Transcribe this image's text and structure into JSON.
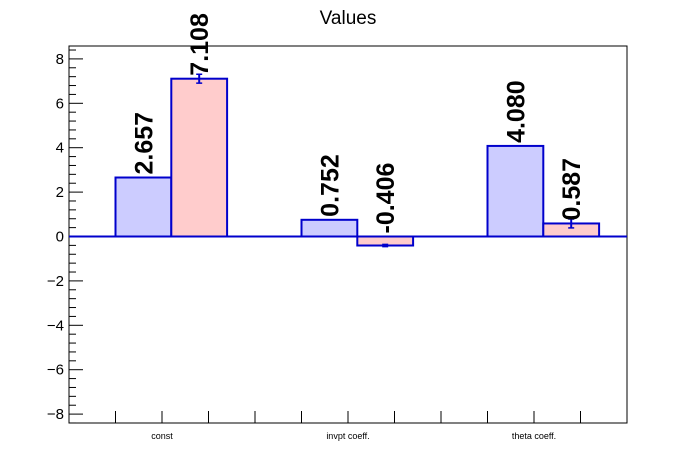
{
  "chart_data": {
    "type": "bar",
    "title": "Values",
    "categories": [
      "const",
      "invpt coeff.",
      "theta coeff."
    ],
    "series": [
      {
        "values": [
          2.657,
          0.752,
          4.08
        ],
        "labels": [
          "2.657",
          "0.752",
          "4.080"
        ],
        "errors": [
          0,
          0,
          0
        ],
        "color": "#ccccff"
      },
      {
        "values": [
          7.108,
          -0.406,
          0.587
        ],
        "labels": [
          "7.108",
          "-0.406",
          "0.587"
        ],
        "errors": [
          0.2,
          0.05,
          0.2
        ],
        "color": "#ffcccc"
      }
    ],
    "ylim": [
      -8.5,
      8.5
    ],
    "yticks": [
      -8,
      -6,
      -4,
      -2,
      0,
      2,
      4,
      6,
      8
    ],
    "ytick_labels": [
      "−8",
      "−6",
      "−4",
      "−2",
      "0",
      "2",
      "4",
      "6",
      "8"
    ],
    "edge_color": "#0000cc",
    "grid": false,
    "legend": "none"
  }
}
